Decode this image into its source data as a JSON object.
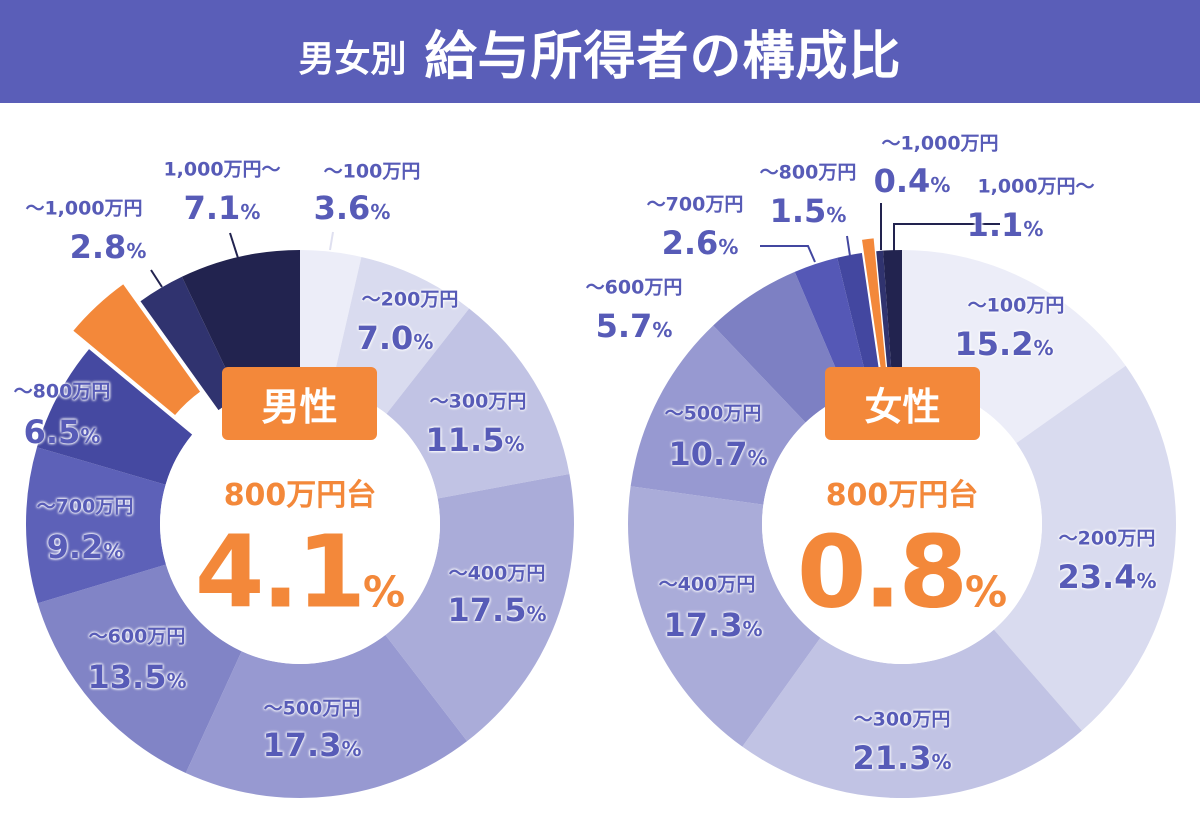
{
  "title": {
    "prefix": "男女別",
    "main": "給与所得者の構成比"
  },
  "colors": {
    "accent": "#f3883a",
    "label": "#575bb7",
    "title_bg": "#5a5eb8"
  },
  "chart_data": [
    {
      "type": "donut",
      "name": "男性",
      "categories": [
        "～100万円",
        "～200万円",
        "～300万円",
        "～400万円",
        "～500万円",
        "～600万円",
        "～700万円",
        "～800万円",
        "800万円台",
        "～1,000万円",
        "1,000万円～"
      ],
      "values": [
        3.6,
        7.0,
        11.5,
        17.5,
        17.3,
        13.5,
        9.2,
        6.5,
        4.1,
        2.8,
        7.1
      ],
      "value_labels": [
        "3.6",
        "7.0",
        "11.5",
        "17.5",
        "17.3",
        "13.5",
        "9.2",
        "6.5",
        "4.1",
        "2.8",
        "7.1"
      ],
      "unit": "%",
      "highlight": {
        "category": "800万円台",
        "value": "4.1",
        "unit": "%"
      },
      "colors": [
        "#ecedf8",
        "#d9dbef",
        "#c1c3e4",
        "#aaacd9",
        "#9799d1",
        "#8184c6",
        "#5d61b8",
        "#4549a1",
        "#f3883a",
        "#30336f",
        "#22234f"
      ]
    },
    {
      "type": "donut",
      "name": "女性",
      "categories": [
        "～100万円",
        "～200万円",
        "～300万円",
        "～400万円",
        "～500万円",
        "～600万円",
        "～700万円",
        "～800万円",
        "800万円台",
        "～1,000万円",
        "1,000万円～"
      ],
      "values": [
        15.2,
        23.4,
        21.3,
        17.3,
        10.7,
        5.7,
        2.6,
        1.5,
        0.8,
        0.4,
        1.1
      ],
      "value_labels": [
        "15.2",
        "23.4",
        "21.3",
        "17.3",
        "10.7",
        "5.7",
        "2.6",
        "1.5",
        "0.8",
        "0.4",
        "1.1"
      ],
      "unit": "%",
      "highlight": {
        "category": "800万円台",
        "value": "0.8",
        "unit": "%"
      },
      "colors": [
        "#ecedf8",
        "#d9dbef",
        "#c1c3e4",
        "#aaacd9",
        "#9799d1",
        "#7d80c3",
        "#5558b6",
        "#4347a0",
        "#f3883a",
        "#30336f",
        "#22234f"
      ]
    }
  ]
}
